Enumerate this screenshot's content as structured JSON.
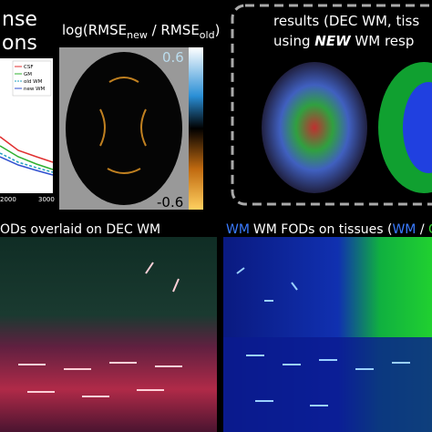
{
  "panel_a": {
    "title_lines": [
      "nse",
      "ons"
    ],
    "legend": [
      "CSF",
      "GM",
      "old WM",
      "new WM"
    ],
    "x_tick_labels": [
      "2000",
      "3000"
    ]
  },
  "panel_b": {
    "title": {
      "prefix": "log(RMSE",
      "sub1": "new",
      "mid": " / RMSE",
      "sub2": "old",
      "suffix": ")"
    },
    "colorbar": {
      "top": "0.6",
      "bottom": "-0.6"
    }
  },
  "panel_c": {
    "line1": "results (DEC WM, tiss",
    "line2_prefix": "using ",
    "line2_bold": "NEW",
    "line2_suffix": " WM resp"
  },
  "panel_d": {
    "title": "ODs overlaid on DEC WM"
  },
  "panel_e": {
    "title_prefix": "WM FODs on tissues (",
    "wm": "WM",
    "sep": " / ",
    "gm": "G"
  }
}
